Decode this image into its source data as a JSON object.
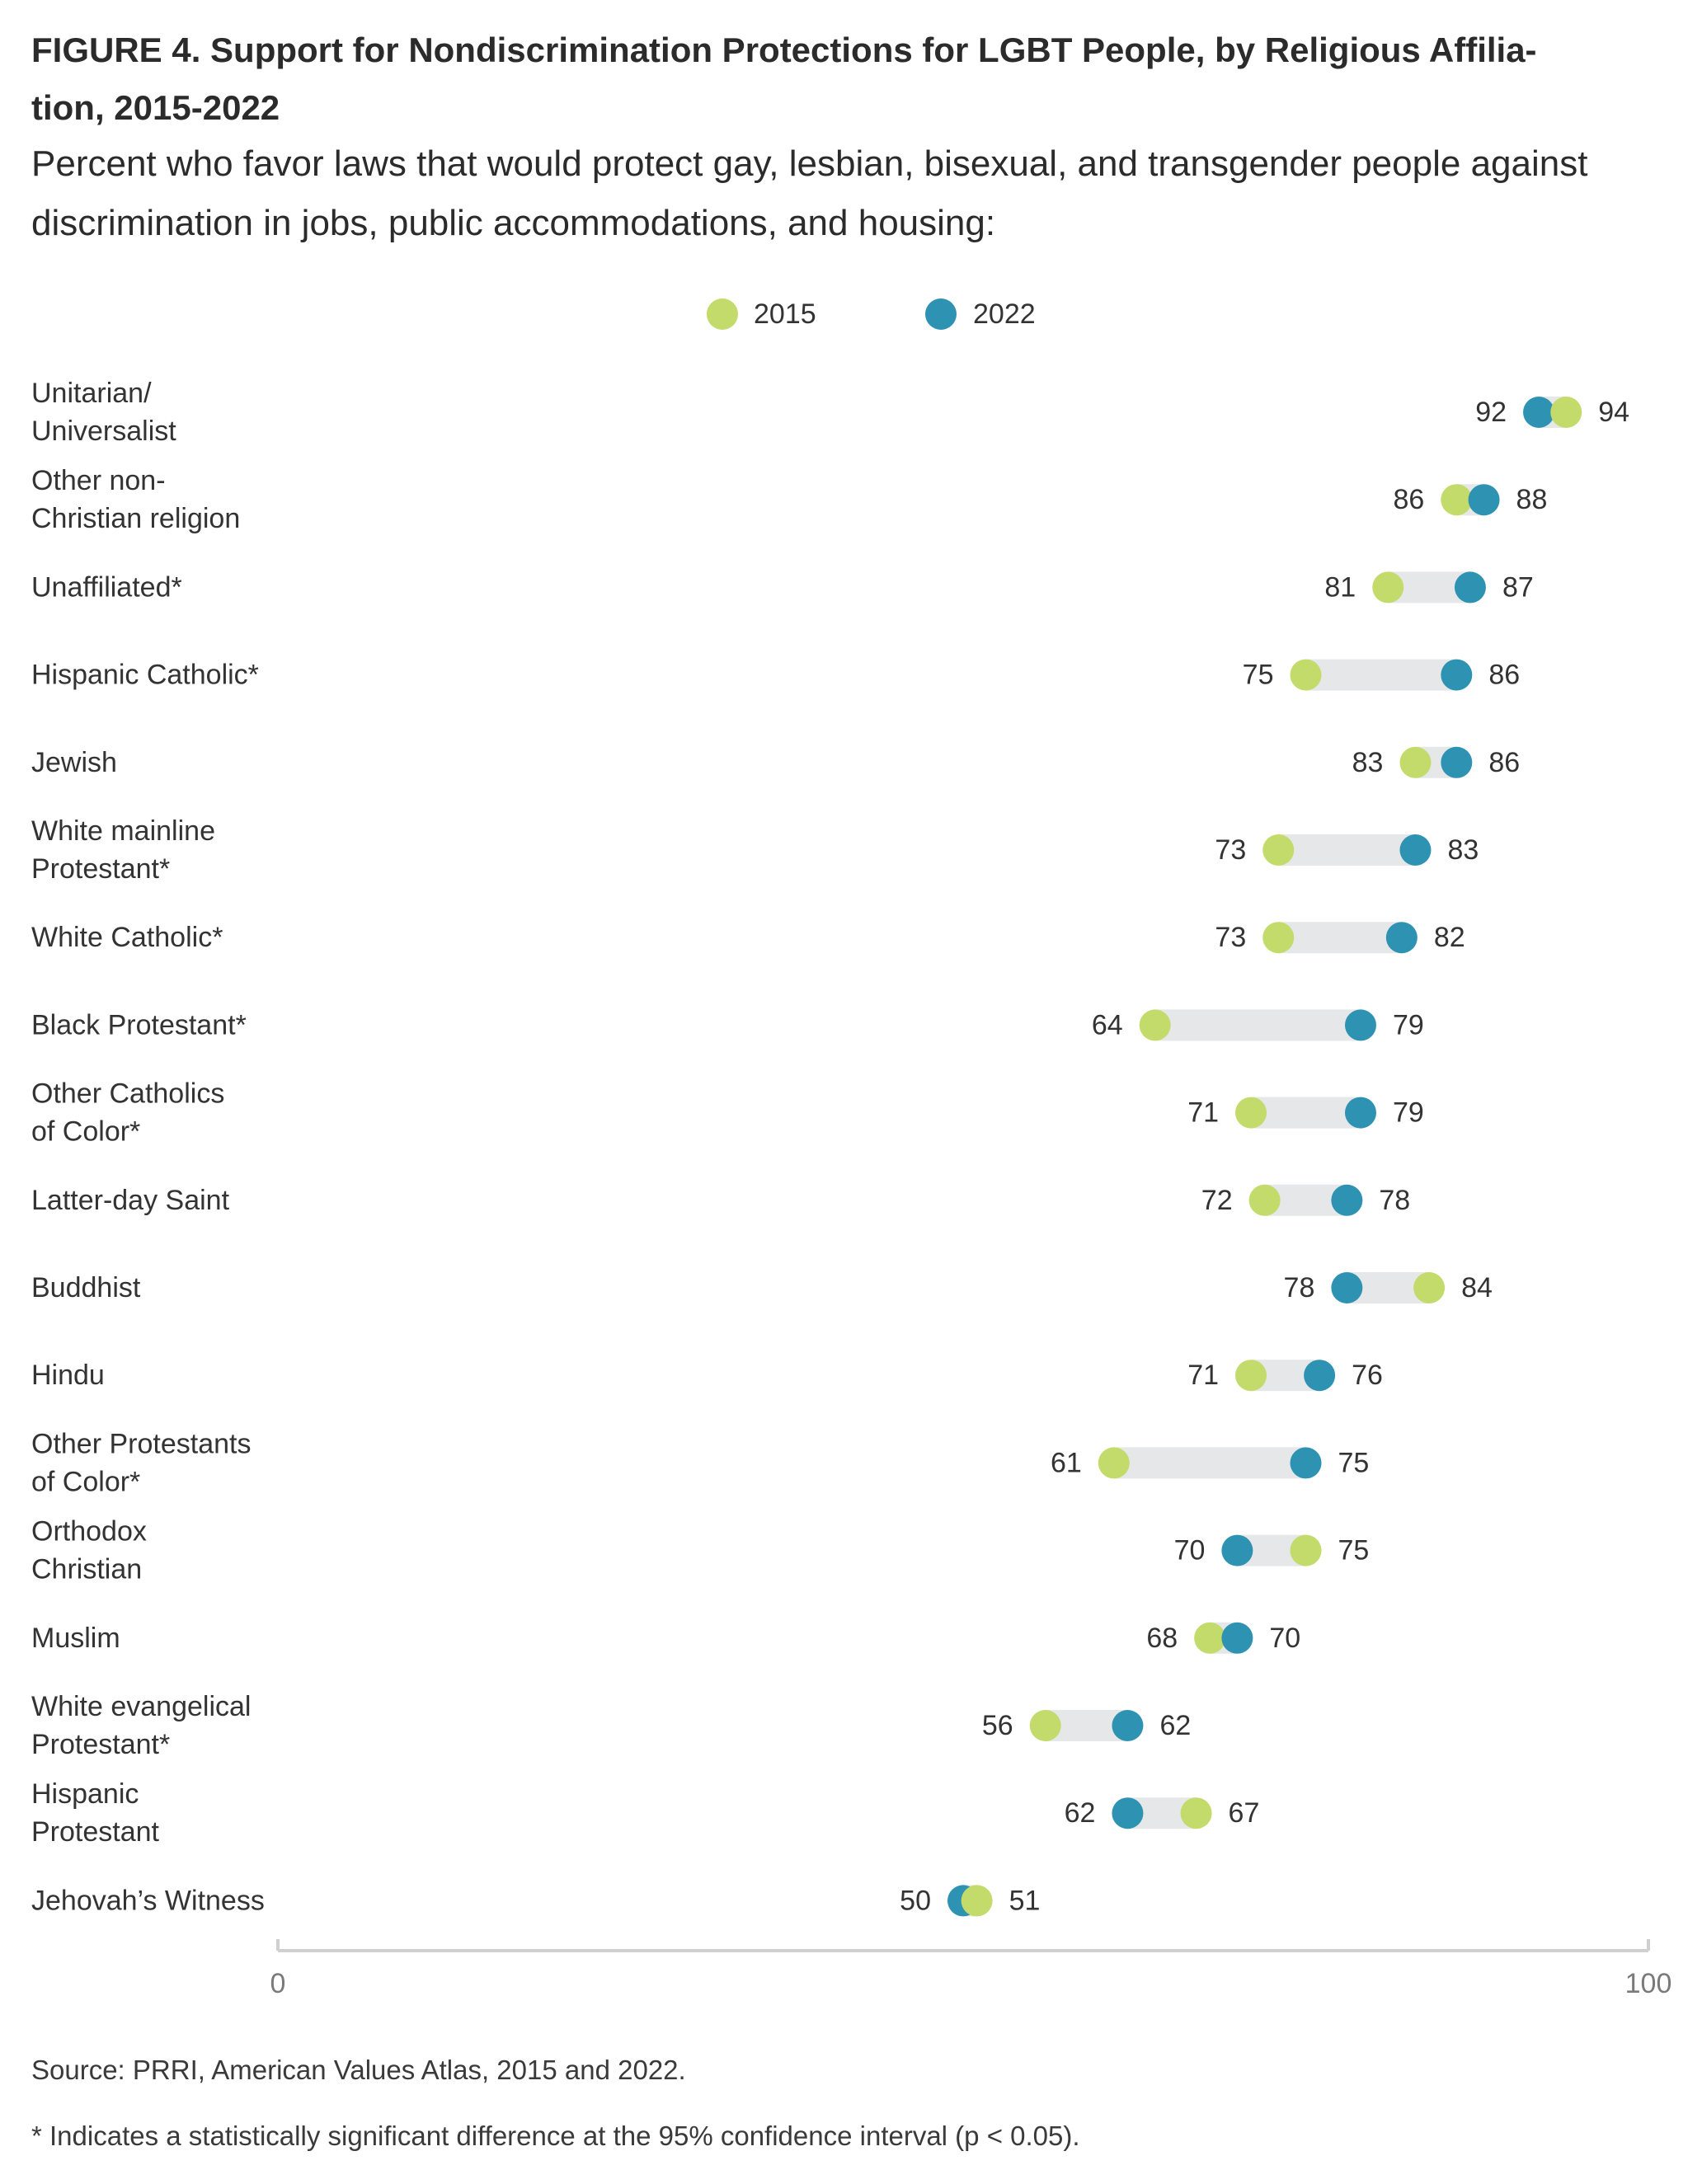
{
  "title": "FIGURE 4.  Support for Nondiscrimination Protections for LGBT People, by Religious Affiliation, 2015-2022",
  "title_lines": [
    "FIGURE 4.  Support for Nondiscrimination Protections for LGBT People, by Religious Affilia-",
    "tion, 2015-2022"
  ],
  "subtitle": "Percent who favor laws that would protect gay, lesbian, bisexual, and transgender people against discrimination in jobs, public accommodations, and housing:",
  "source": "Source: PRRI, American Values Atlas, 2015 and 2022.",
  "note": "* Indicates a statistically significant difference at the 95% confidence interval (p < 0.05).",
  "colors": {
    "series_2015": "#c2db6a",
    "series_2022": "#2e93b3",
    "range_bar": "#e6e7e8",
    "axis": "#d0d0d0",
    "tick_text": "#7a7a7a",
    "value_text": "#333333"
  },
  "chart_data": {
    "type": "dumbbell",
    "xlim": [
      0,
      100
    ],
    "x_ticks": [
      "0",
      "100"
    ],
    "legend_position": "top-center",
    "series": [
      {
        "name": "2015",
        "color": "#c2db6a",
        "values": [
          94,
          86,
          81,
          75,
          83,
          73,
          73,
          64,
          71,
          72,
          84,
          71,
          61,
          75,
          68,
          56,
          67,
          51
        ]
      },
      {
        "name": "2022",
        "color": "#2e93b3",
        "values": [
          92,
          88,
          87,
          86,
          86,
          83,
          82,
          79,
          79,
          78,
          78,
          76,
          75,
          70,
          70,
          62,
          62,
          50
        ]
      }
    ],
    "categories": [
      {
        "label": [
          "Unitarian/",
          "Universalist"
        ]
      },
      {
        "label": [
          "Other non-",
          "Christian religion"
        ]
      },
      {
        "label": [
          "Unaffiliated*"
        ]
      },
      {
        "label": [
          "Hispanic Catholic*"
        ]
      },
      {
        "label": [
          "Jewish"
        ]
      },
      {
        "label": [
          "White mainline",
          "Protestant*"
        ]
      },
      {
        "label": [
          "White Catholic*"
        ]
      },
      {
        "label": [
          "Black Protestant*"
        ]
      },
      {
        "label": [
          "Other Catholics",
          "of Color*"
        ]
      },
      {
        "label": [
          "Latter-day Saint"
        ]
      },
      {
        "label": [
          "Buddhist"
        ]
      },
      {
        "label": [
          "Hindu"
        ]
      },
      {
        "label": [
          "Other Protestants",
          "of Color*"
        ]
      },
      {
        "label": [
          "Orthodox",
          "Christian"
        ]
      },
      {
        "label": [
          "Muslim"
        ]
      },
      {
        "label": [
          "White evangelical",
          "Protestant*"
        ]
      },
      {
        "label": [
          "Hispanic",
          "Protestant"
        ]
      },
      {
        "label": [
          "Jehovah’s Witness"
        ]
      }
    ]
  }
}
